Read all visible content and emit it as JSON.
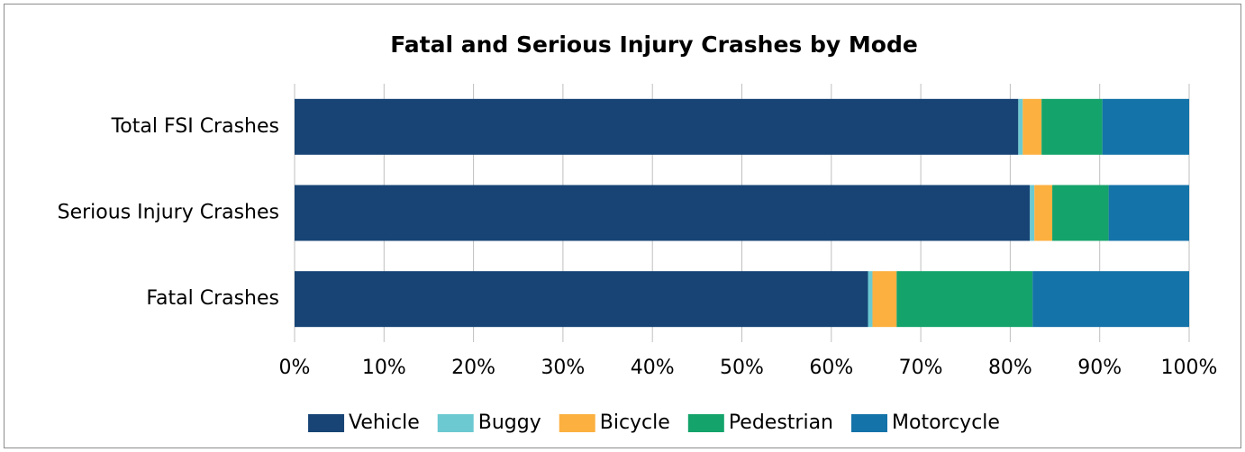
{
  "chart_data": {
    "type": "stacked-bar-horizontal",
    "title": "Fatal and Serious Injury Crashes by Mode",
    "categories": [
      "Total FSI Crashes",
      "Serious Injury Crashes",
      "Fatal Crashes"
    ],
    "series": [
      {
        "name": "Vehicle",
        "color": "#174475",
        "values": [
          80.9,
          82.2,
          64.1
        ]
      },
      {
        "name": "Buggy",
        "color": "#6cc9d2",
        "values": [
          0.5,
          0.5,
          0.5
        ]
      },
      {
        "name": "Bicycle",
        "color": "#fbb040",
        "values": [
          2.1,
          2.0,
          2.7
        ]
      },
      {
        "name": "Pedestrian",
        "color": "#14a36b",
        "values": [
          6.8,
          6.3,
          15.2
        ]
      },
      {
        "name": "Motorcycle",
        "color": "#1473a8",
        "values": [
          9.7,
          9.0,
          17.5
        ]
      }
    ],
    "xlim": [
      0,
      100
    ],
    "xticks": [
      {
        "value": 0,
        "label": "0%"
      },
      {
        "value": 10,
        "label": "10%"
      },
      {
        "value": 20,
        "label": "20%"
      },
      {
        "value": 30,
        "label": "30%"
      },
      {
        "value": 40,
        "label": "40%"
      },
      {
        "value": 50,
        "label": "50%"
      },
      {
        "value": 60,
        "label": "60%"
      },
      {
        "value": 70,
        "label": "70%"
      },
      {
        "value": 80,
        "label": "80%"
      },
      {
        "value": 90,
        "label": "90%"
      },
      {
        "value": 100,
        "label": "100%"
      }
    ],
    "grid": true,
    "legend": "bottom"
  }
}
